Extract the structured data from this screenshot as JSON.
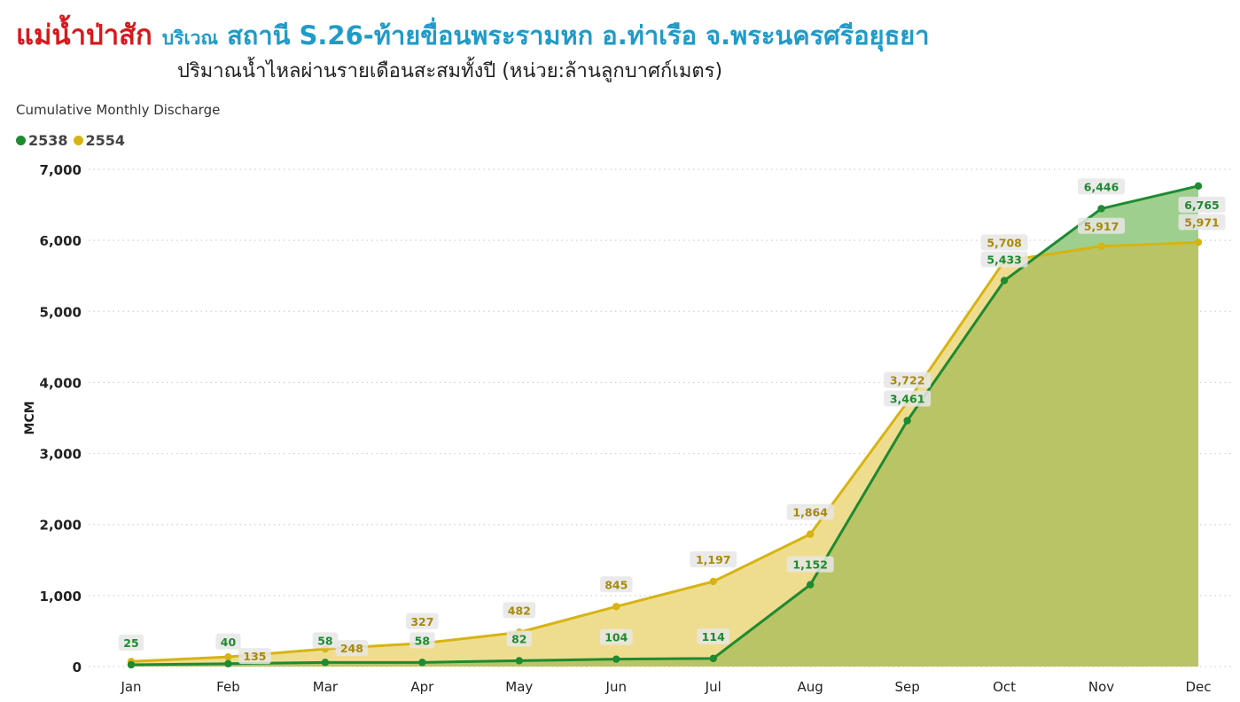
{
  "title": {
    "main": "แม่น้ำป่าสัก",
    "prefix": "บริเวณ",
    "station": "สถานี S.26-ท้ายขื่อนพระรามหก อ.ท่าเรือ จ.พระนครศรีอยุธยา",
    "subtitle": "ปริมาณน้ำไหลผ่านรายเดือนสะสมทั้งปี (หน่วย:ล้านลูกบาศก์เมตร)"
  },
  "chart_label": "Cumulative Monthly Discharge",
  "colors": {
    "series_2538": "#1e8a31",
    "series_2554": "#d6b413",
    "fill_2538": "#9fcf8e",
    "fill_2554": "#efdd8f",
    "fill_overlap": "#b9c466",
    "label_2538": "#1e8a31",
    "label_2554": "#a88a0a",
    "grid": "#cfcfcf"
  },
  "chart_data": {
    "type": "area",
    "title": "Cumulative Monthly Discharge",
    "ylabel": "MCM",
    "xlabel": "",
    "ylim": [
      0,
      7000
    ],
    "yticks": [
      0,
      1000,
      2000,
      3000,
      4000,
      5000,
      6000,
      7000
    ],
    "ytick_labels": [
      "0",
      "1,000",
      "2,000",
      "3,000",
      "4,000",
      "5,000",
      "6,000",
      "7,000"
    ],
    "categories": [
      "Jan",
      "Feb",
      "Mar",
      "Apr",
      "May",
      "Jun",
      "Jul",
      "Aug",
      "Sep",
      "Oct",
      "Nov",
      "Dec"
    ],
    "grid": true,
    "grid_style": "dotted",
    "legend_position": "top-left",
    "series": [
      {
        "name": "2538",
        "values": [
          25,
          40,
          58,
          58,
          82,
          104,
          114,
          1152,
          3461,
          5433,
          6446,
          6765
        ],
        "labels": [
          "25",
          "40",
          "58",
          "58",
          "82",
          "104",
          "114",
          "1,152",
          "3,461",
          "5,433",
          "6,446",
          "6,765"
        ]
      },
      {
        "name": "2554",
        "values": [
          71,
          135,
          248,
          327,
          482,
          845,
          1197,
          1864,
          3722,
          5708,
          5917,
          5971
        ],
        "labels": [
          "",
          "135",
          "248",
          "327",
          "482",
          "845",
          "1,197",
          "1,864",
          "3,722",
          "5,708",
          "5,917",
          "5,971"
        ]
      }
    ]
  }
}
